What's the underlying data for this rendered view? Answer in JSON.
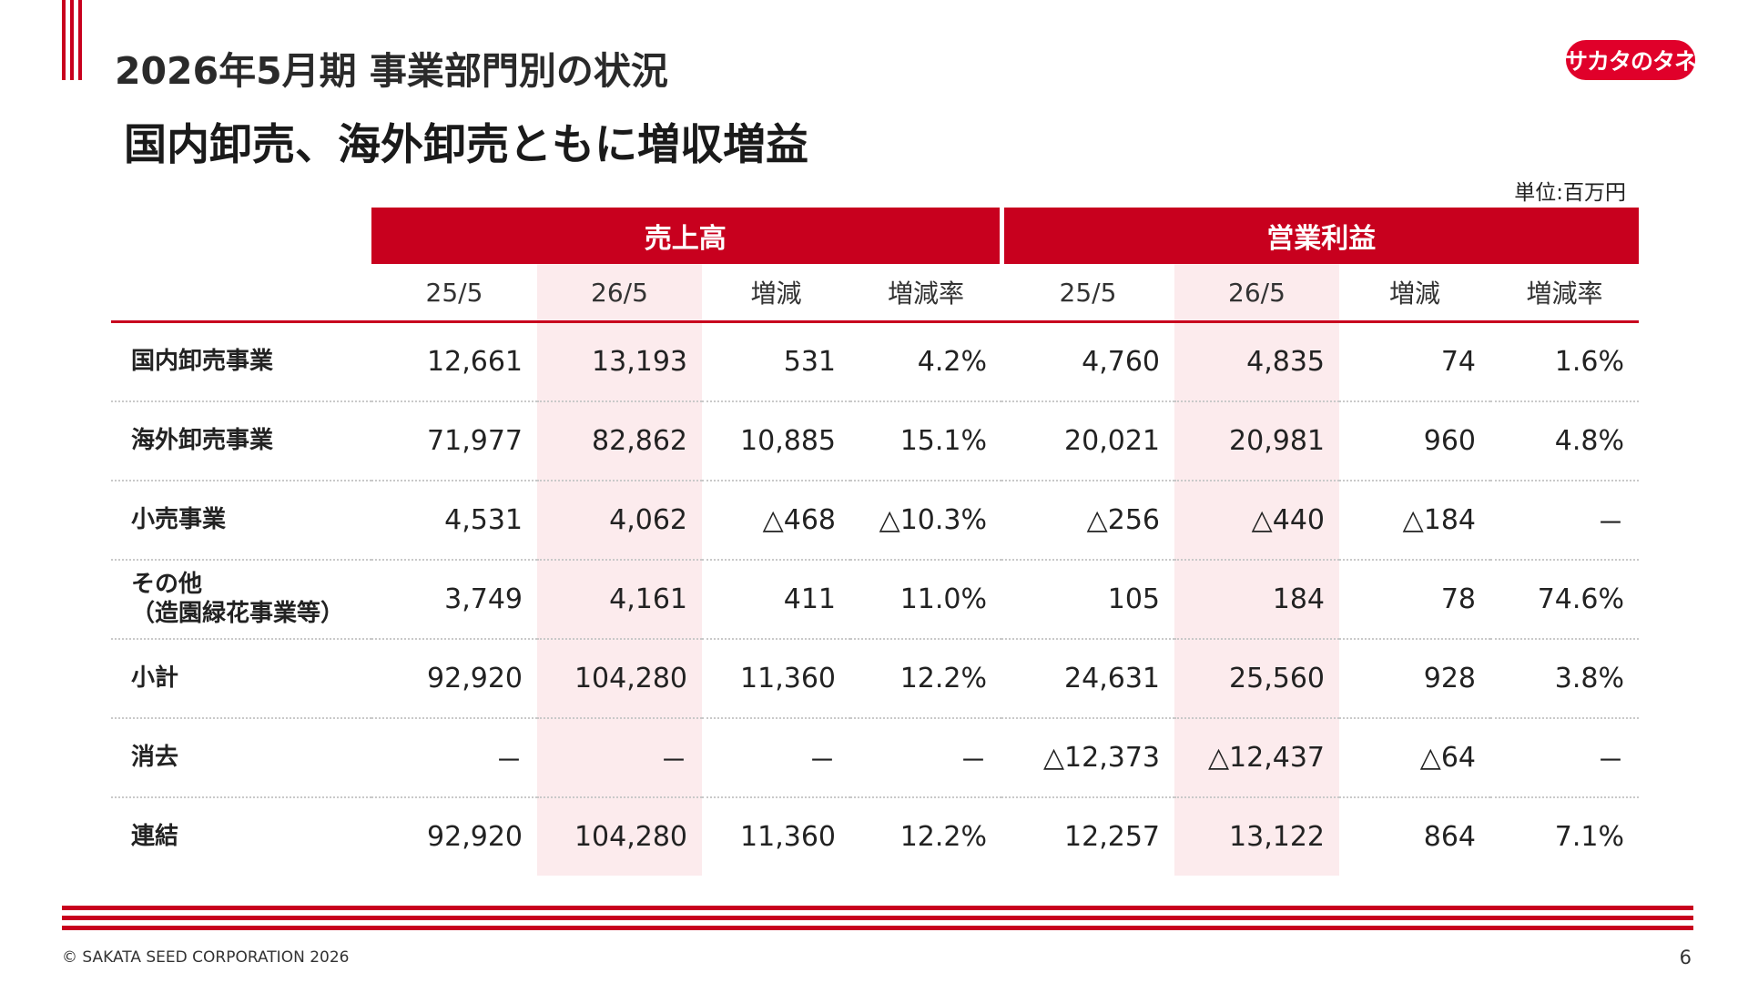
{
  "header": {
    "title": "2026年5月期 事業部門別の状況",
    "headline": "国内卸売、海外卸売ともに増収増益",
    "logo_text": "サカタのタネ",
    "unit": "単位:百万円"
  },
  "table": {
    "groups": [
      "売上高",
      "営業利益"
    ],
    "columns": [
      "25/5",
      "26/5",
      "増減",
      "増減率",
      "25/5",
      "26/5",
      "増減",
      "増減率"
    ],
    "rows": [
      {
        "label": "国内卸売事業",
        "label2": "",
        "values": [
          "12,661",
          "13,193",
          "531",
          "4.2%",
          "4,760",
          "4,835",
          "74",
          "1.6%"
        ]
      },
      {
        "label": "海外卸売事業",
        "label2": "",
        "values": [
          "71,977",
          "82,862",
          "10,885",
          "15.1%",
          "20,021",
          "20,981",
          "960",
          "4.8%"
        ]
      },
      {
        "label": "小売事業",
        "label2": "",
        "values": [
          "4,531",
          "4,062",
          "△468",
          "△10.3%",
          "△256",
          "△440",
          "△184",
          "－"
        ]
      },
      {
        "label": "その他",
        "label2": "（造園緑花事業等）",
        "values": [
          "3,749",
          "4,161",
          "411",
          "11.0%",
          "105",
          "184",
          "78",
          "74.6%"
        ]
      },
      {
        "label": "小計",
        "label2": "",
        "values": [
          "92,920",
          "104,280",
          "11,360",
          "12.2%",
          "24,631",
          "25,560",
          "928",
          "3.8%"
        ]
      },
      {
        "label": "消去",
        "label2": "",
        "values": [
          "－",
          "－",
          "－",
          "－",
          "△12,373",
          "△12,437",
          "△64",
          "－"
        ]
      },
      {
        "label": "連結",
        "label2": "",
        "values": [
          "92,920",
          "104,280",
          "11,360",
          "12.2%",
          "12,257",
          "13,122",
          "864",
          "7.1%"
        ]
      }
    ]
  },
  "footer": {
    "copyright": "© SAKATA SEED CORPORATION 2026",
    "page_number": "6"
  },
  "colors": {
    "accent": "#c8001e",
    "highlight": "#fcebed"
  }
}
